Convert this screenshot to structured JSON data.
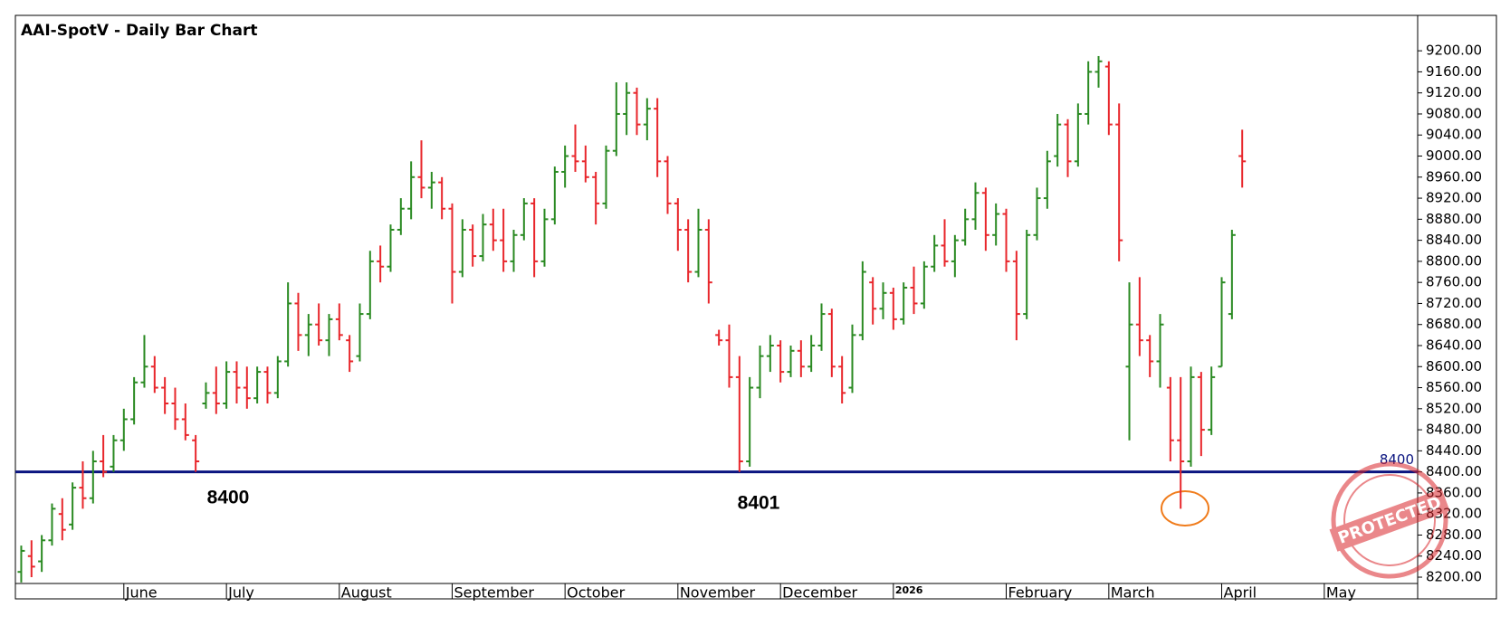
{
  "chart_data": {
    "type": "ohlc",
    "title": "AAI-SpotV - Daily Bar Chart",
    "open": [
      8210,
      8240,
      8230,
      8270,
      8320,
      8300,
      8370,
      8350,
      8420,
      8410,
      8460,
      8500,
      8570,
      8600,
      8560,
      8530,
      8500,
      8460,
      8530,
      8550,
      8530,
      8590,
      8560,
      8540,
      8590,
      8550,
      8610,
      8720,
      8660,
      8680,
      8650,
      8690,
      8650,
      8620,
      8700,
      8800,
      8790,
      8860,
      8900,
      8960,
      8940,
      8950,
      8900,
      8780,
      8860,
      8810,
      8870,
      8840,
      8800,
      8850,
      8910,
      8800,
      8880,
      8970,
      9000,
      8990,
      8960,
      8910,
      9010,
      9080,
      9120,
      9060,
      9090,
      8990,
      8910,
      8860,
      8780,
      8860,
      8660,
      8650,
      8580,
      8420,
      8560,
      8620,
      8640,
      8590,
      8630,
      8600,
      8640,
      8700,
      8600,
      8560,
      8660,
      8760,
      8710,
      8740,
      8690,
      8750,
      8720,
      8790,
      8830,
      8800,
      8840,
      8880,
      8930,
      8850,
      8890,
      8800,
      8700,
      8850,
      8920,
      9000,
      9060,
      8990,
      9080,
      9160,
      9170,
      9060,
      8600,
      8680,
      8650,
      8610,
      8560,
      8460,
      8420,
      8580,
      8480,
      8600,
      8700,
      9000
    ],
    "high": [
      8260,
      8270,
      8280,
      8340,
      8350,
      8380,
      8420,
      8440,
      8470,
      8470,
      8520,
      8580,
      8660,
      8620,
      8580,
      8560,
      8530,
      8470,
      8570,
      8600,
      8610,
      8610,
      8600,
      8600,
      8600,
      8620,
      8760,
      8740,
      8700,
      8720,
      8700,
      8720,
      8660,
      8720,
      8820,
      8830,
      8870,
      8920,
      8990,
      9030,
      8970,
      8960,
      8910,
      8880,
      8870,
      8890,
      8900,
      8900,
      8860,
      8920,
      8920,
      8900,
      8980,
      9020,
      9060,
      9020,
      8970,
      9020,
      9140,
      9140,
      9130,
      9110,
      9110,
      9000,
      8920,
      8880,
      8900,
      8880,
      8670,
      8680,
      8620,
      8580,
      8640,
      8660,
      8650,
      8640,
      8650,
      8660,
      8720,
      8710,
      8620,
      8680,
      8800,
      8770,
      8760,
      8750,
      8760,
      8790,
      8800,
      8850,
      8880,
      8850,
      8900,
      8950,
      8940,
      8910,
      8900,
      8820,
      8860,
      8940,
      9010,
      9080,
      9070,
      9100,
      9180,
      9190,
      9180,
      9100,
      8760,
      8770,
      8660,
      8700,
      8580,
      8580,
      8600,
      8590,
      8600,
      8770,
      8860,
      9050
    ],
    "low": [
      8190,
      8200,
      8210,
      8260,
      8270,
      8290,
      8330,
      8340,
      8390,
      8400,
      8440,
      8490,
      8560,
      8550,
      8510,
      8480,
      8460,
      8400,
      8520,
      8510,
      8520,
      8530,
      8520,
      8530,
      8530,
      8540,
      8600,
      8630,
      8620,
      8640,
      8620,
      8650,
      8590,
      8610,
      8690,
      8760,
      8780,
      8850,
      8880,
      8920,
      8900,
      8880,
      8720,
      8770,
      8790,
      8800,
      8820,
      8780,
      8780,
      8840,
      8770,
      8790,
      8870,
      8940,
      8970,
      8950,
      8870,
      8900,
      9000,
      9040,
      9040,
      9030,
      8960,
      8890,
      8820,
      8760,
      8770,
      8720,
      8640,
      8560,
      8400,
      8410,
      8540,
      8590,
      8570,
      8580,
      8580,
      8590,
      8630,
      8580,
      8530,
      8550,
      8650,
      8680,
      8690,
      8670,
      8680,
      8700,
      8710,
      8780,
      8790,
      8770,
      8830,
      8860,
      8820,
      8830,
      8780,
      8650,
      8690,
      8840,
      8900,
      8980,
      8960,
      8980,
      9060,
      9130,
      9040,
      8800,
      8460,
      8620,
      8580,
      8560,
      8420,
      8330,
      8410,
      8430,
      8470,
      8600,
      8690,
      8940
    ],
    "close": [
      8250,
      8220,
      8270,
      8330,
      8290,
      8370,
      8350,
      8420,
      8400,
      8460,
      8500,
      8570,
      8600,
      8560,
      8530,
      8500,
      8470,
      8420,
      8550,
      8530,
      8590,
      8560,
      8540,
      8590,
      8550,
      8610,
      8720,
      8660,
      8680,
      8650,
      8690,
      8660,
      8610,
      8700,
      8800,
      8790,
      8860,
      8900,
      8960,
      8940,
      8950,
      8900,
      8780,
      8860,
      8810,
      8870,
      8840,
      8800,
      8850,
      8910,
      8800,
      8880,
      8970,
      9000,
      8990,
      8960,
      8910,
      9010,
      9080,
      9120,
      9060,
      9090,
      8990,
      8910,
      8860,
      8780,
      8860,
      8760,
      8650,
      8580,
      8420,
      8560,
      8620,
      8640,
      8590,
      8630,
      8600,
      8640,
      8700,
      8600,
      8550,
      8660,
      8780,
      8710,
      8740,
      8690,
      8750,
      8720,
      8790,
      8830,
      8800,
      8840,
      8880,
      8930,
      8850,
      8890,
      8800,
      8700,
      8850,
      8920,
      8990,
      9060,
      8990,
      9080,
      9160,
      9180,
      9060,
      8840,
      8680,
      8650,
      8610,
      8680,
      8460,
      8420,
      8580,
      8480,
      8580,
      8760,
      8850,
      8990
    ],
    "up_color": "#2a8a22",
    "down_color": "#e8262b",
    "xlim": [
      -0.57,
      136.1
    ],
    "xticks": [
      {
        "value": 10,
        "label": "June"
      },
      {
        "value": 20,
        "label": "July"
      },
      {
        "value": 31,
        "label": "August"
      },
      {
        "value": 42,
        "label": "September"
      },
      {
        "value": 53,
        "label": "October"
      },
      {
        "value": 64,
        "label": "November"
      },
      {
        "value": 74,
        "label": "December"
      },
      {
        "value": 85,
        "label": "2026"
      },
      {
        "value": 96,
        "label": "February"
      },
      {
        "value": 106,
        "label": "March"
      },
      {
        "value": 117,
        "label": "April"
      },
      {
        "value": 127,
        "label": "May"
      }
    ],
    "ylim": [
      8188,
      9214
    ],
    "yticks": [
      {
        "value": 8200,
        "label": "8200.00"
      },
      {
        "value": 8240,
        "label": "8240.00"
      },
      {
        "value": 8280,
        "label": "8280.00"
      },
      {
        "value": 8320,
        "label": "8320.00"
      },
      {
        "value": 8360,
        "label": "8360.00"
      },
      {
        "value": 8400,
        "label": "8400.00"
      },
      {
        "value": 8440,
        "label": "8440.00"
      },
      {
        "value": 8480,
        "label": "8480.00"
      },
      {
        "value": 8520,
        "label": "8520.00"
      },
      {
        "value": 8560,
        "label": "8560.00"
      },
      {
        "value": 8600,
        "label": "8600.00"
      },
      {
        "value": 8640,
        "label": "8640.00"
      },
      {
        "value": 8680,
        "label": "8680.00"
      },
      {
        "value": 8720,
        "label": "8720.00"
      },
      {
        "value": 8760,
        "label": "8760.00"
      },
      {
        "value": 8800,
        "label": "8800.00"
      },
      {
        "value": 8840,
        "label": "8840.00"
      },
      {
        "value": 8880,
        "label": "8880.00"
      },
      {
        "value": 8920,
        "label": "8920.00"
      },
      {
        "value": 8960,
        "label": "8960.00"
      },
      {
        "value": 9000,
        "label": "9000.00"
      },
      {
        "value": 9040,
        "label": "9040.00"
      },
      {
        "value": 9080,
        "label": "9080.00"
      },
      {
        "value": 9120,
        "label": "9120.00"
      },
      {
        "value": 9160,
        "label": "9160.00"
      },
      {
        "value": 9200,
        "label": "9200.00"
      }
    ],
    "hline": {
      "value": 8400,
      "color": "#0b1580"
    },
    "annotations": [
      8400,
      8401
    ],
    "watermark": "PROTECTED"
  }
}
